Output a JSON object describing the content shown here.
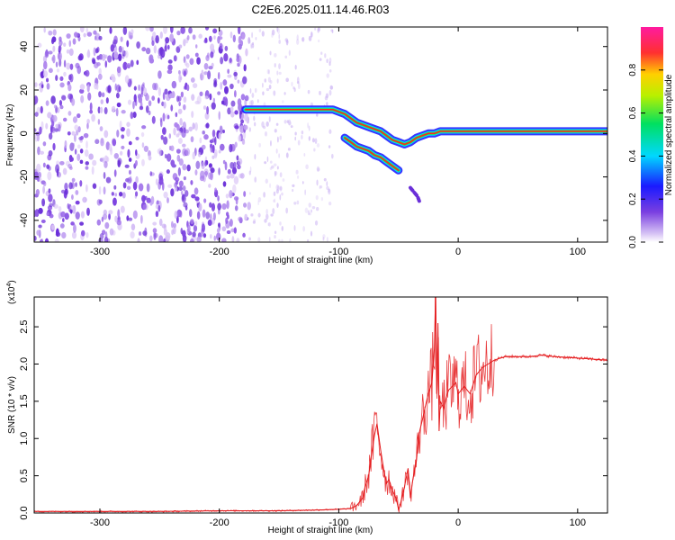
{
  "title": "C2E6.2025.011.14.46.R03",
  "colors": {
    "line": "#e41a1c",
    "spectrogram_noise": "#7a3fe0",
    "ridge": "#ff2020"
  },
  "chart_data": [
    {
      "type": "heatmap",
      "xlabel": "Height of straight line (km)",
      "ylabel": "Frequency (Hz)",
      "xlim": [
        -355,
        125
      ],
      "ylim": [
        -50,
        49
      ],
      "xticks": [
        -300,
        -200,
        -100,
        0,
        100
      ],
      "yticks": [
        -40,
        -20,
        0,
        20,
        40
      ],
      "colorbar": {
        "label": "Normalized spectral amplitude",
        "range": [
          0.0,
          1.0
        ],
        "ticks": [
          0.0,
          0.2,
          0.4,
          0.6,
          0.8
        ],
        "colormap": "rainbow (purple → blue → cyan → green → yellow → red → magenta)"
      },
      "noise_region_x": [
        -355,
        -175
      ],
      "ridge": {
        "x": [
          -178,
          -170,
          -160,
          -150,
          -140,
          -130,
          -120,
          -110,
          -105,
          -100,
          -95,
          -90,
          -85,
          -80,
          -75,
          -70,
          -65,
          -60,
          -55,
          -50,
          -45,
          -40,
          -35,
          -30,
          -25,
          -20,
          -15,
          -10,
          -5,
          0,
          10,
          30,
          60,
          90,
          125
        ],
        "y": [
          11,
          11,
          11,
          11,
          11,
          11,
          11,
          11,
          11,
          10,
          9,
          7,
          5,
          4,
          3,
          2,
          1,
          -1,
          -3,
          -4,
          -5,
          -4,
          -2,
          -1,
          0,
          0,
          1,
          1,
          1,
          1,
          1,
          1,
          1,
          1,
          1
        ]
      },
      "branch": {
        "x": [
          -95,
          -90,
          -85,
          -80,
          -75,
          -70,
          -65,
          -60,
          -55,
          -50
        ],
        "y": [
          -2,
          -4,
          -6,
          -7,
          -8,
          -10,
          -11,
          -13,
          -15,
          -17
        ]
      },
      "tail": {
        "x": [
          -40,
          -37,
          -34,
          -32
        ],
        "y": [
          -25,
          -27,
          -29,
          -32
        ]
      }
    },
    {
      "type": "line",
      "xlabel": "Height of straight line (km)",
      "ylabel": "SNR (10 * v/v)",
      "multiplier": "(x10",
      "multiplier_exp": "4",
      "multiplier_close": ")",
      "xlim": [
        -355,
        125
      ],
      "ylim": [
        0.0,
        2.9
      ],
      "xticks": [
        -300,
        -200,
        -100,
        0,
        100
      ],
      "yticks": [
        0.0,
        0.5,
        1.0,
        1.5,
        2.0,
        2.5
      ],
      "series": [
        {
          "x": [
            -355,
            -300,
            -250,
            -200,
            -150,
            -120,
            -100,
            -90,
            -85,
            -80,
            -78,
            -75,
            -72,
            -70,
            -68,
            -65,
            -62,
            -60,
            -58,
            -55,
            -52,
            -50,
            -48,
            -45,
            -42,
            -40,
            -38,
            -35,
            -33,
            -30,
            -28,
            -25,
            -22,
            -20,
            -19,
            -18,
            -17,
            -16,
            -15,
            -12,
            -10,
            -8,
            -5,
            -2,
            0,
            5,
            10,
            15,
            20,
            25,
            30,
            35,
            40,
            45,
            50,
            60,
            70,
            80,
            90,
            100,
            110,
            125
          ],
          "y": [
            0.02,
            0.02,
            0.02,
            0.03,
            0.03,
            0.04,
            0.05,
            0.06,
            0.1,
            0.2,
            0.35,
            0.5,
            0.85,
            1.05,
            1.2,
            0.85,
            0.55,
            0.4,
            0.45,
            0.3,
            0.2,
            0.05,
            0.15,
            0.35,
            0.6,
            0.2,
            0.45,
            0.7,
            1.05,
            1.25,
            1.4,
            1.6,
            1.75,
            2.2,
            2.9,
            1.6,
            2.55,
            1.1,
            1.5,
            1.4,
            1.55,
            1.65,
            1.7,
            1.75,
            1.6,
            1.7,
            1.6,
            1.85,
            1.95,
            2.0,
            2.05,
            2.08,
            2.1,
            2.1,
            2.1,
            2.1,
            2.12,
            2.1,
            2.09,
            2.08,
            2.07,
            2.05
          ]
        }
      ]
    }
  ]
}
